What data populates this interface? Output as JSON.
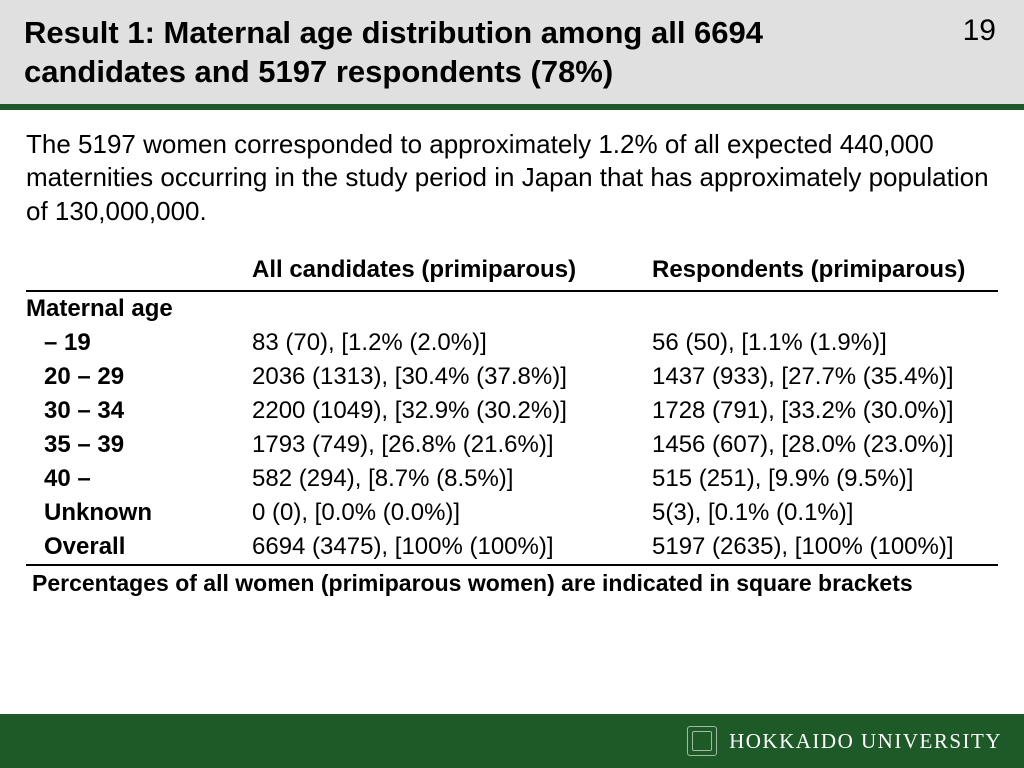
{
  "header": {
    "title": "Result 1: Maternal age distribution among all 6694 candidates and 5197 respondents (78%)",
    "slide_number": "19"
  },
  "intro_text": "The 5197 women corresponded to approximately 1.2% of all expected 440,000 maternities occurring in the study period in Japan that has approximately population of 130,000,000.",
  "table": {
    "col_headers": [
      "",
      "All candidates (primiparous)",
      "Respondents (primiparous)"
    ],
    "section_label": "Maternal age",
    "rows": [
      {
        "label": "  – 19",
        "c1": "83 (70),  [1.2% (2.0%)]",
        "c2": "56 (50), [1.1% (1.9%)]"
      },
      {
        "label": "20 – 29",
        "c1": "2036 (1313), [30.4% (37.8%)]",
        "c2": "1437 (933), [27.7% (35.4%)]"
      },
      {
        "label": "30 – 34",
        "c1": "2200 (1049), [32.9% (30.2%)]",
        "c2": "1728 (791), [33.2% (30.0%)]"
      },
      {
        "label": "35 – 39",
        "c1": "1793 (749), [26.8% (21.6%)]",
        "c2": "1456 (607), [28.0% (23.0%)]"
      },
      {
        "label": "40 –",
        "c1": "582 (294), [8.7% (8.5%)]",
        "c2": "515 (251), [9.9% (9.5%)]"
      },
      {
        "label": "Unknown",
        "c1": "0 (0), [0.0% (0.0%)]",
        "c2": "5(3), [0.1% (0.1%)]"
      },
      {
        "label": "Overall",
        "c1": "6694 (3475), [100% (100%)]",
        "c2": "5197 (2635), [100% (100%)]"
      }
    ],
    "footnote": "Percentages of all women (primiparous women) are indicated in square brackets"
  },
  "footer": {
    "university": "HOKKAIDO UNIVERSITY"
  },
  "style": {
    "header_bg": "#e0e0e0",
    "accent_green": "#1e5a28",
    "title_fontsize": 31,
    "body_fontsize": 26,
    "table_fontsize": 24
  }
}
